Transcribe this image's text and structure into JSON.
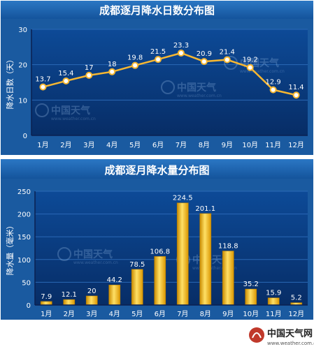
{
  "chart_data": [
    {
      "type": "line",
      "title": "成都逐月降水日数分布图",
      "ylabel": "降水日数（天）",
      "categories": [
        "1月",
        "2月",
        "3月",
        "4月",
        "5月",
        "6月",
        "7月",
        "8月",
        "9月",
        "10月",
        "11月",
        "12月"
      ],
      "values": [
        13.7,
        15.4,
        17,
        18,
        19.8,
        21.5,
        23.3,
        20.9,
        21.4,
        19.2,
        12.9,
        11.4
      ],
      "value_labels": [
        "13.7",
        "15.4",
        "17",
        "18",
        "19.8",
        "21.5",
        "23.3",
        "20.9",
        "21.4",
        "19.2",
        "12.9",
        "11.4"
      ],
      "ylim": [
        0,
        30
      ],
      "yticks": [
        "0",
        "10",
        "20",
        "30"
      ],
      "grid": true,
      "color": "#f7b731"
    },
    {
      "type": "bar",
      "title": "成都逐月降水量分布图",
      "ylabel": "降水量（毫米）",
      "categories": [
        "1月",
        "2月",
        "3月",
        "4月",
        "5月",
        "6月",
        "7月",
        "8月",
        "9月",
        "10月",
        "11月",
        "12月"
      ],
      "values": [
        7.9,
        12.1,
        20,
        44.2,
        78.5,
        106.8,
        224.5,
        201.1,
        118.8,
        35.2,
        15.9,
        5.2
      ],
      "value_labels": [
        "7.9",
        "12.1",
        "20",
        "44.2",
        "78.5",
        "106.8",
        "224.5",
        "201.1",
        "118.8",
        "35.2",
        "15.9",
        "5.2"
      ],
      "ylim": [
        0,
        250
      ],
      "yticks": [
        "0",
        "50",
        "100",
        "150",
        "200",
        "250"
      ],
      "grid": true,
      "color": "#f5b800"
    }
  ],
  "watermark": {
    "brand": "中国天气",
    "url": "www.weather.com.cn"
  },
  "footer_logo": {
    "brand": "中国天气网",
    "url": "www.weather.com.cn"
  },
  "colors": {
    "title_bar": "#1b5fa8",
    "plot_bg_top": "#0a3f86",
    "plot_bg_bottom": "#08306a",
    "grid": "#2b69b6",
    "axis": "#0b2050"
  }
}
